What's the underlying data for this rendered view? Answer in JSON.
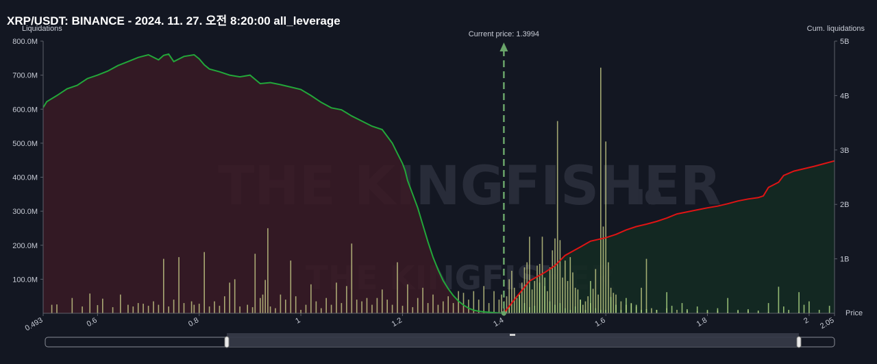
{
  "title": "XRP/USDT: BINANCE - 2024. 11. 27. 오전 8:20:00 all_leverage",
  "watermark": {
    "main": "THE KINGFISHER",
    "suffix": ".IO"
  },
  "chart_data": {
    "type": "bar",
    "ylabel": "Liquidations",
    "y2label": "Cum. liquidations",
    "xlabel": "Price",
    "current_price_label": "Current price: 1.3994",
    "current_price": 1.3994,
    "xlim": [
      0.493,
      2.05
    ],
    "ylim": [
      0,
      800000000
    ],
    "y2lim": [
      0,
      5000000000
    ],
    "x_ticks": [
      "0.493",
      "0.6",
      "0.8",
      "1",
      "1.2",
      "1.4",
      "1.6",
      "1.8",
      "2",
      "2.05"
    ],
    "x_tick_values": [
      0.493,
      0.6,
      0.8,
      1.0,
      1.2,
      1.4,
      1.6,
      1.8,
      2.0,
      2.05
    ],
    "y_ticks": [
      "800.0M",
      "700.0M",
      "600.0M",
      "500.0M",
      "400.0M",
      "300.0M",
      "200.0M",
      "100.0M"
    ],
    "y_tick_values": [
      800000000,
      700000000,
      600000000,
      500000000,
      400000000,
      300000000,
      200000000,
      100000000
    ],
    "y2_ticks": [
      "5B",
      "4B",
      "3B",
      "2B",
      "1B"
    ],
    "y2_tick_values": [
      5000000000,
      4000000000,
      3000000000,
      2000000000,
      1000000000
    ],
    "colors": {
      "short_bar": "#d4d98f",
      "long_bar": "#b7e08a",
      "short_cum": "#22a83a",
      "long_cum": "#e01414",
      "short_fill": "#3a1a24",
      "long_fill": "#142a22",
      "current": "#6aa56a"
    },
    "series": [
      {
        "kind": "bars-left",
        "values": [
          [
            0.51,
            25
          ],
          [
            0.52,
            26
          ],
          [
            0.55,
            45
          ],
          [
            0.57,
            20
          ],
          [
            0.585,
            58
          ],
          [
            0.6,
            24
          ],
          [
            0.61,
            43
          ],
          [
            0.63,
            18
          ],
          [
            0.645,
            55
          ],
          [
            0.66,
            25
          ],
          [
            0.67,
            20
          ],
          [
            0.68,
            30
          ],
          [
            0.69,
            28
          ],
          [
            0.7,
            22
          ],
          [
            0.71,
            35
          ],
          [
            0.72,
            25
          ],
          [
            0.73,
            160
          ],
          [
            0.74,
            20
          ],
          [
            0.75,
            40
          ],
          [
            0.76,
            165
          ],
          [
            0.77,
            30
          ],
          [
            0.785,
            35
          ],
          [
            0.79,
            25
          ],
          [
            0.8,
            28
          ],
          [
            0.81,
            180
          ],
          [
            0.82,
            20
          ],
          [
            0.83,
            35
          ],
          [
            0.84,
            22
          ],
          [
            0.85,
            50
          ],
          [
            0.86,
            90
          ],
          [
            0.87,
            100
          ],
          [
            0.88,
            20
          ],
          [
            0.895,
            25
          ],
          [
            0.905,
            18
          ],
          [
            0.91,
            175
          ],
          [
            0.92,
            45
          ],
          [
            0.925,
            55
          ],
          [
            0.93,
            98
          ],
          [
            0.935,
            250
          ],
          [
            0.94,
            20
          ],
          [
            0.95,
            15
          ],
          [
            0.96,
            55
          ],
          [
            0.97,
            40
          ],
          [
            0.98,
            155
          ],
          [
            0.99,
            50
          ],
          [
            1.0,
            10
          ],
          [
            1.01,
            25
          ],
          [
            1.02,
            85
          ],
          [
            1.03,
            35
          ],
          [
            1.04,
            15
          ],
          [
            1.05,
            45
          ],
          [
            1.06,
            25
          ],
          [
            1.07,
            90
          ],
          [
            1.08,
            30
          ],
          [
            1.09,
            80
          ],
          [
            1.1,
            205
          ],
          [
            1.11,
            40
          ],
          [
            1.12,
            35
          ],
          [
            1.13,
            45
          ],
          [
            1.14,
            25
          ],
          [
            1.15,
            45
          ],
          [
            1.16,
            70
          ],
          [
            1.17,
            40
          ],
          [
            1.18,
            25
          ],
          [
            1.19,
            150
          ],
          [
            1.2,
            22
          ],
          [
            1.21,
            85
          ],
          [
            1.22,
            18
          ],
          [
            1.23,
            45
          ],
          [
            1.24,
            75
          ],
          [
            1.25,
            30
          ],
          [
            1.26,
            55
          ],
          [
            1.27,
            25
          ],
          [
            1.28,
            35
          ],
          [
            1.29,
            50
          ],
          [
            1.3,
            30
          ],
          [
            1.31,
            65
          ],
          [
            1.32,
            60
          ],
          [
            1.33,
            40
          ],
          [
            1.34,
            65
          ],
          [
            1.35,
            40
          ],
          [
            1.36,
            80
          ],
          [
            1.37,
            30
          ],
          [
            1.38,
            65
          ],
          [
            1.39,
            40
          ],
          [
            1.395,
            55
          ],
          [
            1.4,
            35
          ],
          [
            1.405,
            50
          ],
          [
            1.41,
            100
          ],
          [
            1.415,
            125
          ],
          [
            1.42,
            75
          ],
          [
            1.425,
            45
          ],
          [
            1.43,
            55
          ],
          [
            1.435,
            90
          ],
          [
            1.44,
            135
          ],
          [
            1.445,
            150
          ],
          [
            1.45,
            225
          ],
          [
            1.455,
            70
          ],
          [
            1.46,
            95
          ],
          [
            1.465,
            140
          ],
          [
            1.47,
            145
          ],
          [
            1.475,
            225
          ],
          [
            1.48,
            80
          ],
          [
            1.485,
            65
          ],
          [
            1.49,
            135
          ],
          [
            1.495,
            185
          ],
          [
            1.5,
            220
          ],
          [
            1.505,
            565
          ],
          [
            1.51,
            215
          ],
          [
            1.515,
            105
          ],
          [
            1.52,
            155
          ],
          [
            1.525,
            95
          ],
          [
            1.53,
            165
          ],
          [
            1.535,
            120
          ],
          [
            1.54,
            75
          ],
          [
            1.545,
            70
          ],
          [
            1.55,
            40
          ],
          [
            1.555,
            25
          ],
          [
            1.56,
            35
          ],
          [
            1.565,
            50
          ],
          [
            1.57,
            30
          ],
          [
            1.575,
            72
          ],
          [
            1.58,
            130
          ],
          [
            1.585,
            55
          ],
          [
            1.59,
            722
          ],
          [
            1.595,
            255
          ],
          [
            1.6,
            505
          ],
          [
            1.605,
            150
          ],
          [
            1.61,
            75
          ],
          [
            1.615,
            60
          ],
          [
            1.62,
            55
          ],
          [
            1.63,
            35
          ],
          [
            1.64,
            25
          ],
          [
            1.65,
            30
          ],
          [
            1.66,
            20
          ],
          [
            1.67,
            75
          ],
          [
            1.68,
            160
          ],
          [
            1.69,
            15
          ],
          [
            1.7,
            10
          ],
          [
            1.72,
            15
          ],
          [
            1.74,
            10
          ],
          [
            1.76,
            8
          ],
          [
            1.78,
            6
          ],
          [
            1.8,
            5
          ],
          [
            1.82,
            8
          ],
          [
            1.84,
            4
          ],
          [
            1.86,
            6
          ],
          [
            1.88,
            8
          ],
          [
            1.9,
            5
          ],
          [
            1.92,
            4
          ],
          [
            1.94,
            3
          ],
          [
            1.96,
            3
          ],
          [
            1.98,
            4
          ],
          [
            2.0,
            2
          ]
        ]
      },
      {
        "kind": "bars-right",
        "values": [
          [
            1.41,
            20
          ],
          [
            1.43,
            55
          ],
          [
            1.44,
            30
          ],
          [
            1.45,
            18
          ],
          [
            1.46,
            22
          ],
          [
            1.47,
            90
          ],
          [
            1.48,
            105
          ],
          [
            1.49,
            35
          ],
          [
            1.5,
            25
          ],
          [
            1.51,
            30
          ],
          [
            1.52,
            15
          ],
          [
            1.53,
            10
          ],
          [
            1.54,
            20
          ],
          [
            1.55,
            40
          ],
          [
            1.56,
            10
          ],
          [
            1.57,
            95
          ],
          [
            1.58,
            15
          ],
          [
            1.59,
            10
          ],
          [
            1.6,
            10
          ],
          [
            1.61,
            48
          ],
          [
            1.62,
            25
          ],
          [
            1.63,
            10
          ],
          [
            1.64,
            45
          ],
          [
            1.65,
            28
          ],
          [
            1.66,
            25
          ],
          [
            1.67,
            10
          ],
          [
            1.68,
            12
          ],
          [
            1.7,
            10
          ],
          [
            1.72,
            62
          ],
          [
            1.73,
            22
          ],
          [
            1.75,
            30
          ],
          [
            1.76,
            12
          ],
          [
            1.78,
            20
          ],
          [
            1.8,
            10
          ],
          [
            1.82,
            15
          ],
          [
            1.84,
            45
          ],
          [
            1.86,
            10
          ],
          [
            1.88,
            12
          ],
          [
            1.9,
            8
          ],
          [
            1.92,
            30
          ],
          [
            1.94,
            78
          ],
          [
            1.95,
            20
          ],
          [
            1.96,
            10
          ],
          [
            1.98,
            62
          ],
          [
            1.99,
            25
          ],
          [
            2.0,
            35
          ],
          [
            2.02,
            10
          ],
          [
            2.04,
            22
          ]
        ]
      },
      {
        "kind": "cum-short",
        "values": [
          [
            0.493,
            605
          ],
          [
            0.5,
            622
          ],
          [
            0.52,
            640
          ],
          [
            0.54,
            660
          ],
          [
            0.56,
            670
          ],
          [
            0.58,
            690
          ],
          [
            0.6,
            700
          ],
          [
            0.62,
            712
          ],
          [
            0.64,
            728
          ],
          [
            0.66,
            740
          ],
          [
            0.68,
            752
          ],
          [
            0.7,
            760
          ],
          [
            0.72,
            745
          ],
          [
            0.73,
            758
          ],
          [
            0.74,
            762
          ],
          [
            0.75,
            740
          ],
          [
            0.77,
            755
          ],
          [
            0.79,
            760
          ],
          [
            0.8,
            748
          ],
          [
            0.81,
            730
          ],
          [
            0.82,
            718
          ],
          [
            0.84,
            710
          ],
          [
            0.86,
            700
          ],
          [
            0.88,
            695
          ],
          [
            0.9,
            700
          ],
          [
            0.92,
            675
          ],
          [
            0.94,
            678
          ],
          [
            0.96,
            672
          ],
          [
            0.98,
            665
          ],
          [
            1.0,
            658
          ],
          [
            1.02,
            640
          ],
          [
            1.04,
            620
          ],
          [
            1.06,
            604
          ],
          [
            1.08,
            598
          ],
          [
            1.1,
            580
          ],
          [
            1.12,
            565
          ],
          [
            1.14,
            550
          ],
          [
            1.16,
            540
          ],
          [
            1.17,
            520
          ],
          [
            1.18,
            500
          ],
          [
            1.19,
            470
          ],
          [
            1.2,
            440
          ],
          [
            1.205,
            420
          ],
          [
            1.21,
            390
          ],
          [
            1.22,
            350
          ],
          [
            1.23,
            310
          ],
          [
            1.24,
            260
          ],
          [
            1.25,
            210
          ],
          [
            1.26,
            165
          ],
          [
            1.27,
            128
          ],
          [
            1.28,
            96
          ],
          [
            1.29,
            72
          ],
          [
            1.3,
            52
          ],
          [
            1.31,
            36
          ],
          [
            1.32,
            24
          ],
          [
            1.33,
            15
          ],
          [
            1.34,
            9
          ],
          [
            1.35,
            6
          ],
          [
            1.36,
            4
          ],
          [
            1.37,
            3
          ],
          [
            1.38,
            2
          ],
          [
            1.39,
            1
          ],
          [
            1.3994,
            0
          ]
        ]
      },
      {
        "kind": "cum-long",
        "values": [
          [
            1.3994,
            0
          ],
          [
            1.42,
            40
          ],
          [
            1.45,
            95
          ],
          [
            1.48,
            120
          ],
          [
            1.5,
            140
          ],
          [
            1.52,
            170
          ],
          [
            1.55,
            195
          ],
          [
            1.57,
            212
          ],
          [
            1.6,
            222
          ],
          [
            1.62,
            232
          ],
          [
            1.64,
            245
          ],
          [
            1.66,
            255
          ],
          [
            1.68,
            262
          ],
          [
            1.7,
            270
          ],
          [
            1.72,
            280
          ],
          [
            1.74,
            292
          ],
          [
            1.76,
            298
          ],
          [
            1.78,
            304
          ],
          [
            1.8,
            310
          ],
          [
            1.82,
            315
          ],
          [
            1.84,
            322
          ],
          [
            1.86,
            330
          ],
          [
            1.88,
            336
          ],
          [
            1.9,
            340
          ],
          [
            1.91,
            345
          ],
          [
            1.92,
            370
          ],
          [
            1.94,
            385
          ],
          [
            1.95,
            405
          ],
          [
            1.97,
            418
          ],
          [
            1.99,
            425
          ],
          [
            2.01,
            432
          ],
          [
            2.03,
            440
          ],
          [
            2.05,
            448
          ]
        ]
      }
    ]
  }
}
